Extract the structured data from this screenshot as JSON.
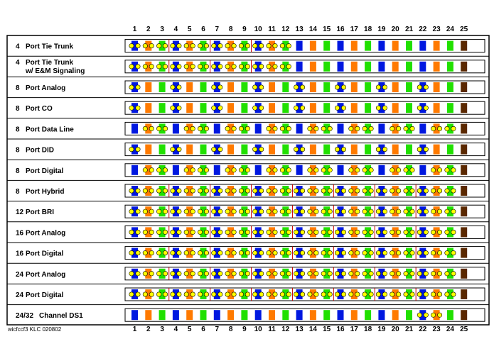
{
  "pins": [
    "1",
    "2",
    "3",
    "4",
    "5",
    "6",
    "7",
    "8",
    "9",
    "10",
    "11",
    "12",
    "13",
    "14",
    "15",
    "16",
    "17",
    "18",
    "19",
    "20",
    "21",
    "22",
    "23",
    "24",
    "25"
  ],
  "pin_colors": [
    "blue",
    "orange",
    "green",
    "blue",
    "orange",
    "green",
    "blue",
    "orange",
    "green",
    "blue",
    "orange",
    "green",
    "blue",
    "orange",
    "green",
    "blue",
    "orange",
    "green",
    "blue",
    "orange",
    "green",
    "blue",
    "orange",
    "green",
    "brown"
  ],
  "colors": {
    "blue": "#0018e0",
    "orange": "#ff7a00",
    "green": "#21e000",
    "brown": "#5a2800",
    "marker": "#ffff00",
    "divider": "#cc0000"
  },
  "rows": [
    {
      "num": "4",
      "label": "Port Tie Trunk",
      "label2": "",
      "used": [
        1,
        2,
        3,
        4,
        5,
        6,
        7,
        8,
        9,
        10,
        11,
        12
      ]
    },
    {
      "num": "4",
      "label": "Port Tie Trunk",
      "label2": "w/ E&M Signaling",
      "used": [
        1,
        2,
        3,
        4,
        5,
        6,
        7,
        8,
        9,
        10,
        11,
        12
      ]
    },
    {
      "num": "8",
      "label": "Port Analog",
      "label2": "",
      "used": [
        1,
        4,
        7,
        10,
        13,
        16,
        19,
        22
      ]
    },
    {
      "num": "8",
      "label": "Port CO",
      "label2": "",
      "used": [
        1,
        4,
        7,
        10,
        13,
        16,
        19,
        22
      ]
    },
    {
      "num": "8",
      "label": "Port Data Line",
      "label2": "",
      "used": [
        2,
        3,
        5,
        6,
        8,
        9,
        11,
        12,
        14,
        15,
        17,
        18,
        20,
        21,
        23,
        24
      ]
    },
    {
      "num": "8",
      "label": "Port DID",
      "label2": "",
      "used": [
        1,
        4,
        7,
        10,
        13,
        16,
        19,
        22
      ]
    },
    {
      "num": "8",
      "label": "Port Digital",
      "label2": "",
      "used": [
        2,
        3,
        5,
        6,
        8,
        9,
        11,
        12,
        14,
        15,
        17,
        18,
        20,
        21,
        23,
        24
      ]
    },
    {
      "num": "8",
      "label": "Port Hybrid",
      "label2": "",
      "used": [
        1,
        2,
        3,
        4,
        5,
        6,
        7,
        8,
        9,
        10,
        11,
        12,
        13,
        14,
        15,
        16,
        17,
        18,
        19,
        20,
        21,
        22,
        23,
        24
      ]
    },
    {
      "num": "12",
      "label": "Port BRI",
      "label2": "",
      "used": [
        1,
        2,
        3,
        4,
        5,
        6,
        7,
        8,
        9,
        10,
        11,
        12,
        13,
        14,
        15,
        16,
        17,
        18,
        19,
        20,
        21,
        22,
        23,
        24
      ]
    },
    {
      "num": "16",
      "label": "Port Analog",
      "label2": "",
      "used": [
        1,
        2,
        3,
        4,
        5,
        6,
        7,
        8,
        9,
        10,
        11,
        12,
        13,
        14,
        15,
        16,
        17,
        18,
        19,
        20,
        21,
        22,
        23,
        24
      ]
    },
    {
      "num": "16",
      "label": "Port Digital",
      "label2": "",
      "used": [
        1,
        2,
        3,
        4,
        5,
        6,
        7,
        8,
        9,
        10,
        11,
        12,
        13,
        14,
        15,
        16,
        17,
        18,
        19,
        20,
        21,
        22,
        23,
        24
      ]
    },
    {
      "num": "24",
      "label": "Port Analog",
      "label2": "",
      "used": [
        1,
        2,
        3,
        4,
        5,
        6,
        7,
        8,
        9,
        10,
        11,
        12,
        13,
        14,
        15,
        16,
        17,
        18,
        19,
        20,
        21,
        22,
        23,
        24
      ]
    },
    {
      "num": "24",
      "label": "Port Digital",
      "label2": "",
      "used": [
        1,
        2,
        3,
        4,
        5,
        6,
        7,
        8,
        9,
        10,
        11,
        12,
        13,
        14,
        15,
        16,
        17,
        18,
        19,
        20,
        21,
        22,
        23,
        24
      ]
    },
    {
      "num": "24/32",
      "label": "Channel DS1",
      "label2": "",
      "used": [
        22,
        23
      ]
    }
  ],
  "footer_code": "wicfccf3 KLC 020802"
}
